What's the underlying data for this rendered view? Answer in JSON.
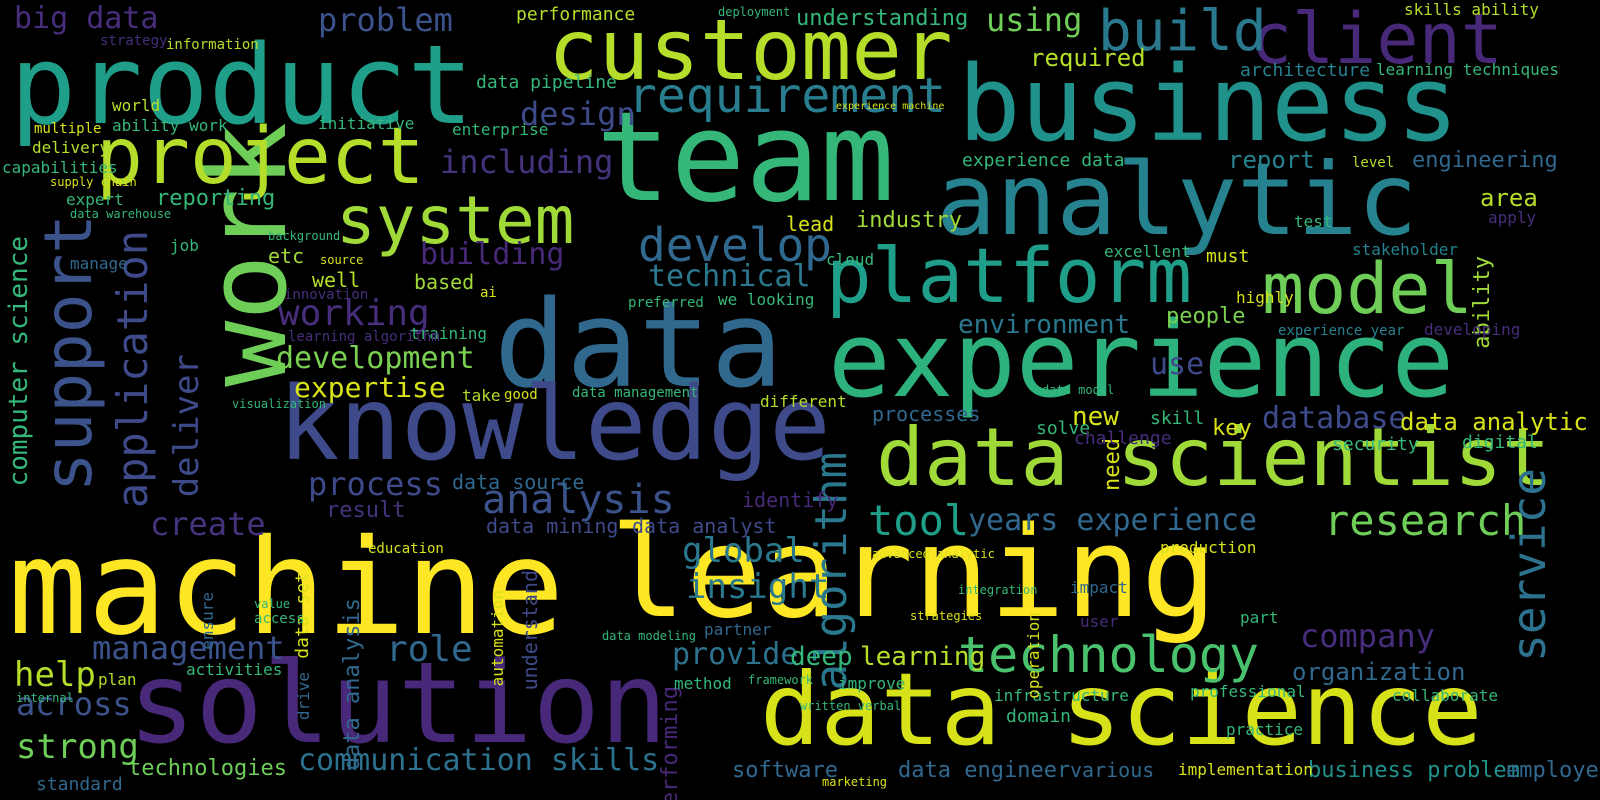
{
  "palette": {
    "background": "#000000",
    "viridis": [
      "#440154",
      "#482878",
      "#3e4a89",
      "#31688e",
      "#26828e",
      "#1f9e89",
      "#35b779",
      "#6ece58",
      "#b5de2b",
      "#fde725"
    ]
  },
  "words": [
    {
      "text": "machine",
      "color": "#fde725"
    },
    {
      "text": "learning",
      "color": "#fde725"
    },
    {
      "text": "solution",
      "color": "#482878"
    },
    {
      "text": "data science",
      "color": "#d8e219"
    },
    {
      "text": "data",
      "color": "#31688e"
    },
    {
      "text": "experience",
      "color": "#2db27d"
    },
    {
      "text": "knowledge",
      "color": "#3e4a89"
    },
    {
      "text": "team",
      "color": "#35b779"
    },
    {
      "text": "product",
      "color": "#1f9e89"
    },
    {
      "text": "business",
      "color": "#21918c"
    },
    {
      "text": "analytic",
      "color": "#26828e"
    },
    {
      "text": "customer",
      "color": "#b5de2b"
    },
    {
      "text": "work",
      "color": "#6ece58"
    },
    {
      "text": "project",
      "color": "#b5de2b"
    },
    {
      "text": "system",
      "color": "#a0da39"
    },
    {
      "text": "platform",
      "color": "#1f9e89"
    },
    {
      "text": "data scientist",
      "color": "#a0da39"
    },
    {
      "text": "model",
      "color": "#6ece58"
    },
    {
      "text": "client",
      "color": "#482878"
    },
    {
      "text": "build",
      "color": "#2a788e"
    },
    {
      "text": "support",
      "color": "#3b528b"
    },
    {
      "text": "application",
      "color": "#3e4a89"
    },
    {
      "text": "requirement",
      "color": "#287d8e"
    },
    {
      "text": "develop",
      "color": "#31688e"
    },
    {
      "text": "technology",
      "color": "#4ac16d"
    },
    {
      "text": "service",
      "color": "#2c728e"
    },
    {
      "text": "research",
      "color": "#6ece58"
    },
    {
      "text": "years experience",
      "color": "#31688e"
    },
    {
      "text": "tool",
      "color": "#1f9e89"
    },
    {
      "text": "analysis",
      "color": "#3b528b"
    },
    {
      "text": "process",
      "color": "#3e4a89"
    },
    {
      "text": "problem",
      "color": "#3b528b"
    },
    {
      "text": "using",
      "color": "#6ece58"
    },
    {
      "text": "design",
      "color": "#3e4a89"
    },
    {
      "text": "including",
      "color": "#46337e"
    },
    {
      "text": "working",
      "color": "#472d7b"
    },
    {
      "text": "development",
      "color": "#7ad151"
    },
    {
      "text": "expertise",
      "color": "#d8e219"
    },
    {
      "text": "management",
      "color": "#3b528b"
    },
    {
      "text": "across",
      "color": "#3b528b"
    },
    {
      "text": "strong",
      "color": "#6ece58"
    },
    {
      "text": "communication skills",
      "color": "#2c728e"
    },
    {
      "text": "insight",
      "color": "#2a788e"
    },
    {
      "text": "global",
      "color": "#2a788e"
    },
    {
      "text": "algorithm",
      "color": "#2a788e"
    },
    {
      "text": "provide",
      "color": "#2c728e"
    },
    {
      "text": "deep",
      "color": "#35b779"
    },
    {
      "text": "learning",
      "color": "#b5de2b"
    },
    {
      "text": "role",
      "color": "#31688e"
    },
    {
      "text": "help",
      "color": "#b5de2b"
    },
    {
      "text": "create",
      "color": "#46337e"
    },
    {
      "text": "deliver",
      "color": "#3e4a89"
    },
    {
      "text": "company",
      "color": "#472d7b"
    },
    {
      "text": "organization",
      "color": "#31688e"
    },
    {
      "text": "database",
      "color": "#3e4a89"
    },
    {
      "text": "data analytic",
      "color": "#d8e219"
    },
    {
      "text": "environment",
      "color": "#2a788e"
    },
    {
      "text": "people",
      "color": "#7ad151"
    },
    {
      "text": "building",
      "color": "#482878"
    },
    {
      "text": "technical",
      "color": "#2a788e"
    },
    {
      "text": "reporting",
      "color": "#35b779"
    },
    {
      "text": "industry",
      "color": "#a0da39"
    },
    {
      "text": "lead",
      "color": "#d8e219"
    },
    {
      "text": "report",
      "color": "#26828e"
    },
    {
      "text": "engineering",
      "color": "#31688e"
    },
    {
      "text": "big data",
      "color": "#472d7b"
    },
    {
      "text": "computer science",
      "color": "#35b779"
    },
    {
      "text": "data mining",
      "color": "#3e4a89"
    },
    {
      "text": "data analyst",
      "color": "#3e4a89"
    },
    {
      "text": "identify",
      "color": "#482878"
    },
    {
      "text": "data source",
      "color": "#31688e"
    },
    {
      "text": "result",
      "color": "#46337e"
    },
    {
      "text": "performing",
      "color": "#482878"
    },
    {
      "text": "data engineer",
      "color": "#31688e"
    },
    {
      "text": "software",
      "color": "#31688e"
    },
    {
      "text": "business problem",
      "color": "#21918c"
    },
    {
      "text": "employee",
      "color": "#31688e"
    },
    {
      "text": "technologies",
      "color": "#6ece58"
    },
    {
      "text": "standard",
      "color": "#31688e"
    },
    {
      "text": "information",
      "color": "#b5de2b"
    },
    {
      "text": "performance",
      "color": "#b5de2b"
    },
    {
      "text": "required",
      "color": "#b5de2b"
    },
    {
      "text": "understanding",
      "color": "#35b779"
    },
    {
      "text": "skills ability",
      "color": "#b5de2b"
    },
    {
      "text": "learning techniques",
      "color": "#35b779"
    },
    {
      "text": "architecture",
      "color": "#26828e"
    },
    {
      "text": "data pipeline",
      "color": "#35b779"
    },
    {
      "text": "experience data",
      "color": "#35b779"
    },
    {
      "text": "excellent",
      "color": "#35b779"
    },
    {
      "text": "ability",
      "color": "#a0da39"
    },
    {
      "text": "area",
      "color": "#b5de2b"
    },
    {
      "text": "new",
      "color": "#d8e219"
    },
    {
      "text": "need",
      "color": "#d8e219"
    },
    {
      "text": "use",
      "color": "#3e4a89"
    },
    {
      "text": "well",
      "color": "#b5de2b"
    },
    {
      "text": "etc",
      "color": "#a0da39"
    },
    {
      "text": "based",
      "color": "#a0da39"
    },
    {
      "text": "initiative",
      "color": "#35b779"
    },
    {
      "text": "enterprise",
      "color": "#35b779"
    },
    {
      "text": "multiple",
      "color": "#d8e219"
    },
    {
      "text": "delivery",
      "color": "#b5de2b"
    },
    {
      "text": "ability work",
      "color": "#35b779"
    },
    {
      "text": "capabilities",
      "color": "#35b779"
    },
    {
      "text": "world",
      "color": "#b5de2b"
    },
    {
      "text": "manage",
      "color": "#31688e"
    },
    {
      "text": "expert",
      "color": "#35b779"
    },
    {
      "text": "strategy",
      "color": "#472d7b"
    },
    {
      "text": "job",
      "color": "#35b779"
    },
    {
      "text": "data warehouse",
      "color": "#35b779"
    },
    {
      "text": "supply chain",
      "color": "#d8e219"
    },
    {
      "text": "processes",
      "color": "#31688e"
    },
    {
      "text": "solve",
      "color": "#35b779"
    },
    {
      "text": "data management",
      "color": "#35b779"
    },
    {
      "text": "different",
      "color": "#b5de2b"
    },
    {
      "text": "good",
      "color": "#d8e219"
    },
    {
      "text": "take",
      "color": "#b5de2b"
    },
    {
      "text": "training",
      "color": "#35b779"
    },
    {
      "text": "activities",
      "color": "#35b779"
    },
    {
      "text": "plan",
      "color": "#b5de2b"
    },
    {
      "text": "internal",
      "color": "#35b779"
    },
    {
      "text": "key",
      "color": "#d8e219"
    },
    {
      "text": "skill",
      "color": "#35b779"
    },
    {
      "text": "security",
      "color": "#35b779"
    },
    {
      "text": "digital",
      "color": "#35b779"
    },
    {
      "text": "challenge",
      "color": "#472d7b"
    },
    {
      "text": "experience year",
      "color": "#26828e"
    },
    {
      "text": "developing",
      "color": "#472d7b"
    },
    {
      "text": "must",
      "color": "#d8e219"
    },
    {
      "text": "stakeholder",
      "color": "#26828e"
    },
    {
      "text": "apply",
      "color": "#472d7b"
    },
    {
      "text": "test",
      "color": "#35b779"
    },
    {
      "text": "level",
      "color": "#b5de2b"
    },
    {
      "text": "cloud",
      "color": "#35b779"
    },
    {
      "text": "preferred",
      "color": "#35b779"
    },
    {
      "text": "we looking",
      "color": "#35b779"
    },
    {
      "text": "highly",
      "color": "#d8e219"
    },
    {
      "text": "education",
      "color": "#d8e219"
    },
    {
      "text": "production",
      "color": "#d8e219"
    },
    {
      "text": "partner",
      "color": "#31688e"
    },
    {
      "text": "method",
      "color": "#35b779"
    },
    {
      "text": "improve",
      "color": "#35b779"
    },
    {
      "text": "framework",
      "color": "#35b779"
    },
    {
      "text": "infrastructure",
      "color": "#35b779"
    },
    {
      "text": "domain",
      "color": "#35b779"
    },
    {
      "text": "professional",
      "color": "#35b779"
    },
    {
      "text": "collaborate",
      "color": "#35b779"
    },
    {
      "text": "practice",
      "color": "#35b779"
    },
    {
      "text": "implementation",
      "color": "#d8e219"
    },
    {
      "text": "various",
      "color": "#31688e"
    },
    {
      "text": "marketing",
      "color": "#d8e219"
    },
    {
      "text": "written verbal",
      "color": "#35b779"
    },
    {
      "text": "innovation",
      "color": "#472d7b"
    },
    {
      "text": "learning algorithm",
      "color": "#472d7b"
    },
    {
      "text": "visualization",
      "color": "#35b779"
    },
    {
      "text": "data analysis",
      "color": "#31688e"
    },
    {
      "text": "data set",
      "color": "#d8e219"
    },
    {
      "text": "understand",
      "color": "#3e4a89"
    },
    {
      "text": "automation",
      "color": "#d8e219"
    },
    {
      "text": "operation",
      "color": "#d8e219"
    },
    {
      "text": "impact",
      "color": "#31688e"
    },
    {
      "text": "user",
      "color": "#472d7b"
    },
    {
      "text": "part",
      "color": "#35b779"
    },
    {
      "text": "strategies",
      "color": "#d8e219"
    },
    {
      "text": "integration",
      "color": "#35b779"
    },
    {
      "text": "experience machine",
      "color": "#d8e219"
    },
    {
      "text": "deployment",
      "color": "#35b779"
    },
    {
      "text": "advanced analytic",
      "color": "#d8e219"
    },
    {
      "text": "data modeling",
      "color": "#35b779"
    },
    {
      "text": "ensure",
      "color": "#31688e"
    },
    {
      "text": "value",
      "color": "#35b779"
    },
    {
      "text": "access",
      "color": "#35b779"
    },
    {
      "text": "drive",
      "color": "#31688e"
    },
    {
      "text": "source",
      "color": "#d8e219"
    },
    {
      "text": "ai",
      "color": "#d8e219"
    },
    {
      "text": "data model",
      "color": "#35b779"
    },
    {
      "text": "background",
      "color": "#35b779"
    }
  ]
}
